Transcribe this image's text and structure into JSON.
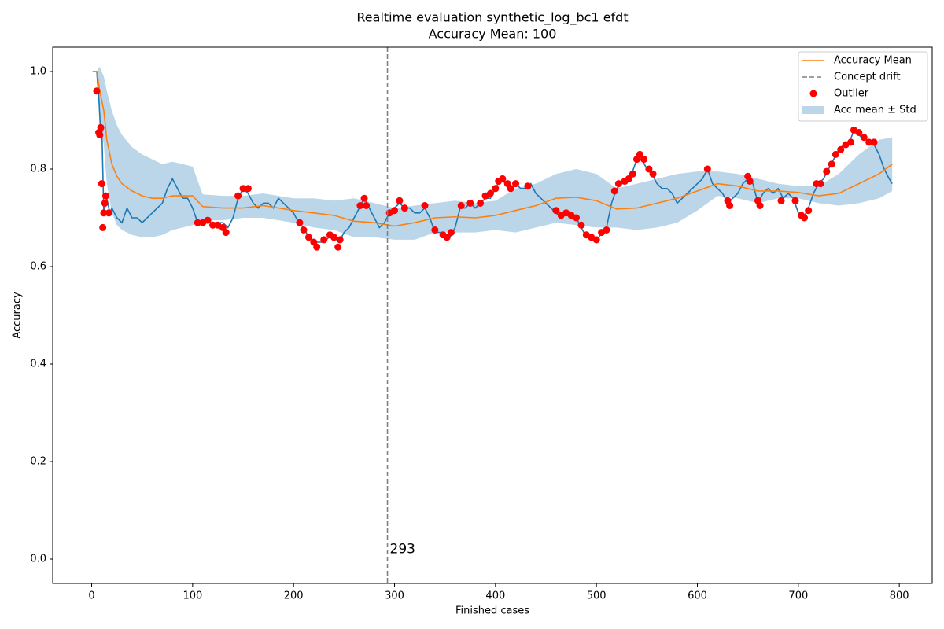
{
  "chart_data": {
    "type": "line",
    "title": "Realtime evaluation synthetic_log_bc1 efdt",
    "subtitle": "Accuracy Mean: 100",
    "x_label": "Finished cases",
    "y_label": "Accuracy",
    "xlim": [
      -38.6,
      832.6
    ],
    "ylim": [
      -0.05,
      1.05
    ],
    "xticks": [
      0,
      100,
      200,
      300,
      400,
      500,
      600,
      700,
      800
    ],
    "yticks": [
      {
        "value": 0,
        "label": "0.0"
      },
      {
        "value": 0.2,
        "label": "0.2"
      },
      {
        "value": 0.4,
        "label": "0.4"
      },
      {
        "value": 0.6,
        "label": "0.6"
      },
      {
        "value": 0.8,
        "label": "0.8"
      },
      {
        "value": 1,
        "label": "1.0"
      }
    ],
    "legend": "upper right",
    "accuracy": {
      "color": "#1f77b4",
      "x": [
        1,
        5,
        7,
        9,
        10,
        12,
        15,
        18,
        20,
        25,
        30,
        35,
        40,
        45,
        50,
        55,
        60,
        65,
        70,
        75,
        80,
        85,
        90,
        95,
        100,
        105,
        110,
        115,
        120,
        125,
        130,
        135,
        140,
        145,
        150,
        155,
        160,
        165,
        170,
        175,
        180,
        185,
        190,
        195,
        200,
        205,
        210,
        215,
        220,
        225,
        230,
        235,
        240,
        245,
        250,
        255,
        260,
        265,
        270,
        275,
        280,
        285,
        290,
        295,
        300,
        305,
        310,
        315,
        320,
        325,
        330,
        335,
        340,
        345,
        350,
        355,
        360,
        365,
        370,
        375,
        380,
        385,
        390,
        395,
        400,
        405,
        410,
        415,
        420,
        425,
        430,
        435,
        440,
        445,
        450,
        455,
        460,
        465,
        470,
        475,
        480,
        485,
        490,
        495,
        500,
        505,
        510,
        515,
        520,
        525,
        530,
        535,
        540,
        545,
        550,
        555,
        560,
        565,
        570,
        575,
        580,
        585,
        590,
        595,
        600,
        605,
        610,
        615,
        620,
        625,
        630,
        635,
        640,
        645,
        650,
        655,
        660,
        665,
        670,
        675,
        680,
        685,
        690,
        695,
        700,
        705,
        710,
        715,
        720,
        725,
        730,
        735,
        740,
        745,
        750,
        755,
        760,
        765,
        770,
        775,
        780,
        785,
        790,
        793
      ],
      "values": [
        1.0,
        1.0,
        0.95,
        0.87,
        0.89,
        0.71,
        0.74,
        0.71,
        0.72,
        0.7,
        0.69,
        0.72,
        0.7,
        0.7,
        0.69,
        0.7,
        0.71,
        0.72,
        0.73,
        0.76,
        0.78,
        0.76,
        0.74,
        0.74,
        0.72,
        0.69,
        0.69,
        0.69,
        0.69,
        0.69,
        0.69,
        0.68,
        0.7,
        0.74,
        0.76,
        0.75,
        0.73,
        0.72,
        0.73,
        0.73,
        0.72,
        0.74,
        0.73,
        0.72,
        0.71,
        0.69,
        0.68,
        0.66,
        0.65,
        0.65,
        0.65,
        0.66,
        0.66,
        0.65,
        0.67,
        0.68,
        0.7,
        0.72,
        0.74,
        0.72,
        0.7,
        0.68,
        0.69,
        0.71,
        0.72,
        0.73,
        0.72,
        0.72,
        0.71,
        0.71,
        0.72,
        0.7,
        0.67,
        0.67,
        0.66,
        0.66,
        0.68,
        0.72,
        0.72,
        0.73,
        0.72,
        0.73,
        0.74,
        0.74,
        0.76,
        0.78,
        0.77,
        0.76,
        0.77,
        0.76,
        0.76,
        0.77,
        0.75,
        0.74,
        0.73,
        0.72,
        0.71,
        0.7,
        0.71,
        0.7,
        0.7,
        0.68,
        0.66,
        0.66,
        0.65,
        0.67,
        0.68,
        0.73,
        0.76,
        0.77,
        0.77,
        0.79,
        0.82,
        0.82,
        0.8,
        0.79,
        0.77,
        0.76,
        0.76,
        0.75,
        0.73,
        0.74,
        0.75,
        0.76,
        0.77,
        0.78,
        0.8,
        0.77,
        0.76,
        0.75,
        0.73,
        0.74,
        0.75,
        0.77,
        0.78,
        0.77,
        0.73,
        0.75,
        0.76,
        0.75,
        0.76,
        0.74,
        0.75,
        0.74,
        0.71,
        0.7,
        0.72,
        0.75,
        0.77,
        0.78,
        0.8,
        0.82,
        0.84,
        0.85,
        0.85,
        0.88,
        0.87,
        0.86,
        0.86,
        0.85,
        0.83,
        0.8,
        0.78,
        0.77
      ]
    },
    "mean": {
      "name": "Accuracy Mean",
      "color": "#ff7f0e",
      "x": [
        1,
        5,
        8,
        12,
        15,
        20,
        25,
        30,
        40,
        50,
        60,
        70,
        80,
        90,
        100,
        110,
        130,
        150,
        170,
        200,
        220,
        240,
        260,
        280,
        300,
        320,
        340,
        360,
        380,
        400,
        420,
        440,
        460,
        480,
        500,
        520,
        540,
        560,
        580,
        600,
        620,
        640,
        660,
        680,
        700,
        720,
        740,
        760,
        780,
        793
      ],
      "values": [
        1.0,
        1.0,
        0.96,
        0.92,
        0.86,
        0.81,
        0.785,
        0.77,
        0.755,
        0.745,
        0.74,
        0.74,
        0.745,
        0.745,
        0.745,
        0.723,
        0.72,
        0.72,
        0.725,
        0.715,
        0.71,
        0.705,
        0.693,
        0.69,
        0.683,
        0.69,
        0.7,
        0.702,
        0.7,
        0.705,
        0.715,
        0.725,
        0.74,
        0.742,
        0.735,
        0.718,
        0.72,
        0.73,
        0.74,
        0.755,
        0.77,
        0.765,
        0.755,
        0.755,
        0.752,
        0.745,
        0.75,
        0.77,
        0.79,
        0.81
      ]
    },
    "band": {
      "name": "Acc mean ± Std",
      "color": "#1f77b4",
      "x": [
        1,
        5,
        8,
        12,
        15,
        20,
        25,
        30,
        40,
        50,
        60,
        70,
        80,
        90,
        100,
        110,
        130,
        150,
        170,
        200,
        220,
        240,
        260,
        280,
        300,
        320,
        340,
        360,
        380,
        400,
        420,
        440,
        460,
        480,
        500,
        520,
        540,
        560,
        580,
        600,
        620,
        640,
        660,
        680,
        700,
        720,
        740,
        760,
        780,
        793
      ],
      "upper": [
        1.0,
        1.0,
        1.01,
        0.99,
        0.96,
        0.92,
        0.89,
        0.87,
        0.845,
        0.83,
        0.82,
        0.81,
        0.815,
        0.81,
        0.805,
        0.748,
        0.745,
        0.745,
        0.75,
        0.74,
        0.74,
        0.735,
        0.74,
        0.73,
        0.72,
        0.725,
        0.73,
        0.735,
        0.73,
        0.735,
        0.76,
        0.77,
        0.79,
        0.8,
        0.79,
        0.76,
        0.77,
        0.78,
        0.79,
        0.795,
        0.795,
        0.79,
        0.78,
        0.77,
        0.765,
        0.765,
        0.79,
        0.83,
        0.86,
        0.865
      ],
      "lower": [
        1.0,
        1.0,
        0.9,
        0.85,
        0.77,
        0.71,
        0.685,
        0.675,
        0.665,
        0.66,
        0.66,
        0.665,
        0.675,
        0.68,
        0.685,
        0.695,
        0.695,
        0.7,
        0.7,
        0.69,
        0.68,
        0.675,
        0.66,
        0.66,
        0.655,
        0.655,
        0.67,
        0.67,
        0.67,
        0.675,
        0.67,
        0.68,
        0.69,
        0.685,
        0.68,
        0.68,
        0.675,
        0.68,
        0.69,
        0.715,
        0.745,
        0.74,
        0.73,
        0.74,
        0.74,
        0.73,
        0.725,
        0.73,
        0.74,
        0.755
      ]
    },
    "outliers": {
      "name": "Outlier",
      "color": "#ff0000",
      "x": [
        5,
        7,
        8,
        9,
        10,
        11,
        12,
        13,
        14,
        17,
        105,
        110,
        115,
        120,
        125,
        130,
        133,
        145,
        150,
        155,
        206,
        210,
        215,
        220,
        223,
        230,
        236,
        240,
        244,
        246,
        266,
        270,
        272,
        295,
        300,
        305,
        310,
        330,
        340,
        348,
        352,
        356,
        366,
        375,
        385,
        390,
        395,
        400,
        403,
        407,
        412,
        415,
        420,
        432,
        460,
        465,
        470,
        475,
        480,
        485,
        490,
        495,
        500,
        505,
        510,
        518,
        522,
        528,
        532,
        536,
        540,
        543,
        547,
        552,
        556,
        610,
        630,
        632,
        650,
        652,
        660,
        662,
        683,
        697,
        703,
        706,
        710,
        718,
        722,
        728,
        733,
        737,
        742,
        747,
        752,
        755,
        760,
        765,
        770,
        775
      ],
      "values": [
        0.96,
        0.875,
        0.87,
        0.885,
        0.77,
        0.68,
        0.71,
        0.73,
        0.745,
        0.71,
        0.69,
        0.69,
        0.695,
        0.685,
        0.685,
        0.68,
        0.67,
        0.745,
        0.76,
        0.76,
        0.69,
        0.675,
        0.66,
        0.65,
        0.64,
        0.655,
        0.665,
        0.66,
        0.64,
        0.655,
        0.725,
        0.74,
        0.725,
        0.71,
        0.715,
        0.735,
        0.72,
        0.725,
        0.675,
        0.665,
        0.66,
        0.67,
        0.725,
        0.73,
        0.73,
        0.745,
        0.75,
        0.76,
        0.775,
        0.78,
        0.77,
        0.76,
        0.77,
        0.765,
        0.715,
        0.705,
        0.71,
        0.705,
        0.7,
        0.685,
        0.665,
        0.66,
        0.655,
        0.67,
        0.675,
        0.755,
        0.77,
        0.775,
        0.78,
        0.79,
        0.82,
        0.83,
        0.82,
        0.8,
        0.79,
        0.8,
        0.735,
        0.725,
        0.785,
        0.775,
        0.735,
        0.725,
        0.735,
        0.735,
        0.705,
        0.7,
        0.715,
        0.77,
        0.77,
        0.795,
        0.81,
        0.83,
        0.84,
        0.85,
        0.855,
        0.88,
        0.875,
        0.865,
        0.855,
        0.855
      ]
    },
    "drift": {
      "name": "Concept drift",
      "color": "#808080",
      "x": 293
    }
  }
}
